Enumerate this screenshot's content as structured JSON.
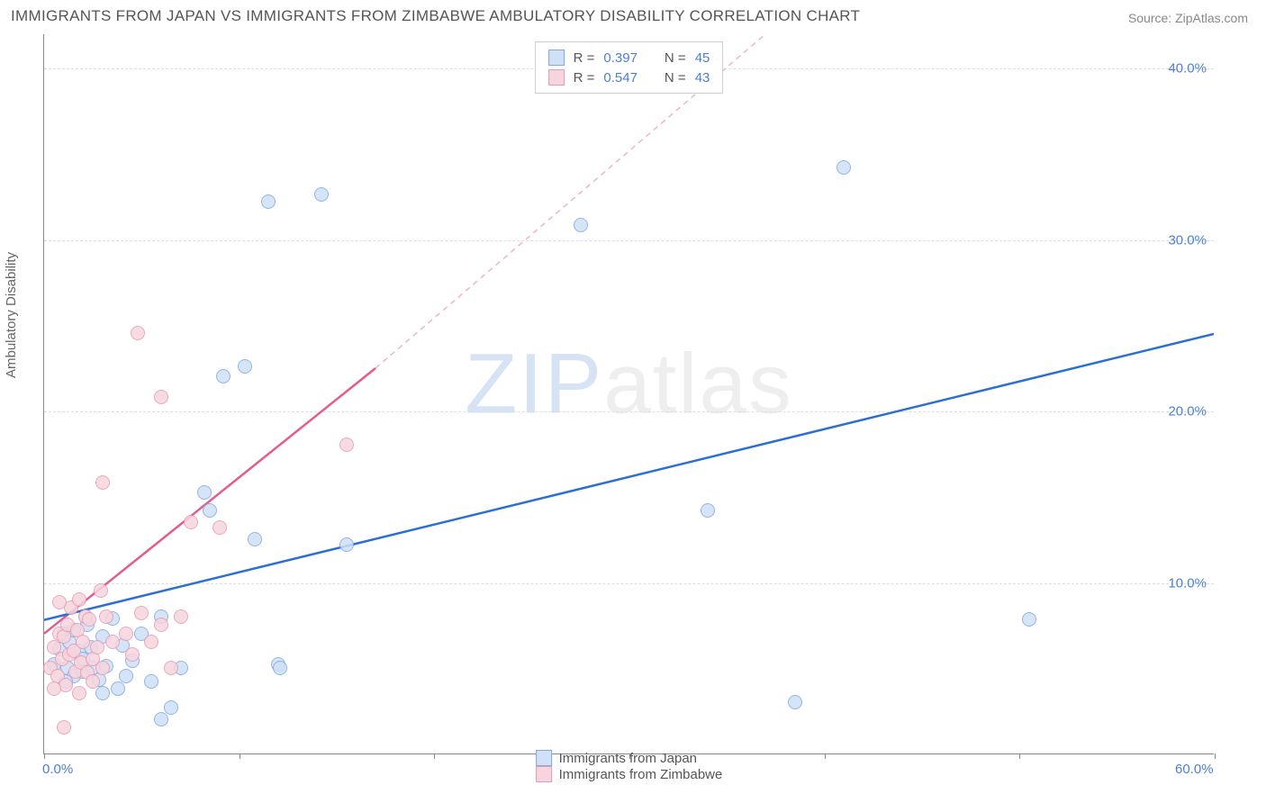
{
  "title": "IMMIGRANTS FROM JAPAN VS IMMIGRANTS FROM ZIMBABWE AMBULATORY DISABILITY CORRELATION CHART",
  "source_prefix": "Source: ",
  "source_name": "ZipAtlas.com",
  "ylabel": "Ambulatory Disability",
  "watermark_bold": "ZIP",
  "watermark_light": "atlas",
  "chart": {
    "type": "scatter",
    "xlim": [
      0,
      60
    ],
    "ylim": [
      0,
      42
    ],
    "xtick_positions": [
      0,
      10,
      20,
      30,
      40,
      50,
      60
    ],
    "xtick_labels": {
      "0": "0.0%",
      "60": "60.0%"
    },
    "ytick_positions": [
      10,
      20,
      30,
      40
    ],
    "ytick_labels": [
      "10.0%",
      "20.0%",
      "30.0%",
      "40.0%"
    ],
    "grid_color": "#dddddd",
    "axis_color": "#888888",
    "background_color": "#ffffff",
    "point_radius": 8,
    "point_stroke_width": 1.2,
    "series": [
      {
        "name": "Immigrants from Japan",
        "fill_color": "#cfe0f7",
        "stroke_color": "#7fa9e0",
        "legend_swatch_fill": "#cfe0f7",
        "legend_swatch_border": "#7fa9e0",
        "R": "0.397",
        "N": "45",
        "trend": {
          "color": "#2b6fd6",
          "width": 2.5,
          "dash": "none",
          "x1": 0,
          "y1": 7.8,
          "x2": 60,
          "y2": 24.5
        },
        "points": [
          [
            0.5,
            5.2
          ],
          [
            0.8,
            6.1
          ],
          [
            1.0,
            7.0
          ],
          [
            1.2,
            5.0
          ],
          [
            1.3,
            6.5
          ],
          [
            1.5,
            4.5
          ],
          [
            1.5,
            7.2
          ],
          [
            1.8,
            6.0
          ],
          [
            2.0,
            5.5
          ],
          [
            2.0,
            4.8
          ],
          [
            2.2,
            7.5
          ],
          [
            2.4,
            6.2
          ],
          [
            2.5,
            5.0
          ],
          [
            2.8,
            4.3
          ],
          [
            3.0,
            6.8
          ],
          [
            3.2,
            5.1
          ],
          [
            3.5,
            7.9
          ],
          [
            3.8,
            3.8
          ],
          [
            4.0,
            6.3
          ],
          [
            4.5,
            5.4
          ],
          [
            5.0,
            7.0
          ],
          [
            5.5,
            4.2
          ],
          [
            6.0,
            8.0
          ],
          [
            6.5,
            2.7
          ],
          [
            7.0,
            5.0
          ],
          [
            8.2,
            15.2
          ],
          [
            8.5,
            14.2
          ],
          [
            9.2,
            22.0
          ],
          [
            10.3,
            22.6
          ],
          [
            10.8,
            12.5
          ],
          [
            12.0,
            5.2
          ],
          [
            12.1,
            5.0
          ],
          [
            11.5,
            32.2
          ],
          [
            14.2,
            32.6
          ],
          [
            15.5,
            12.2
          ],
          [
            27.5,
            30.8
          ],
          [
            34.0,
            14.2
          ],
          [
            38.5,
            3.0
          ],
          [
            41.0,
            34.2
          ],
          [
            50.5,
            7.8
          ],
          [
            4.2,
            4.5
          ],
          [
            3.0,
            3.5
          ],
          [
            2.1,
            8.0
          ],
          [
            1.1,
            4.2
          ],
          [
            6.0,
            2.0
          ]
        ]
      },
      {
        "name": "Immigrants from Zimbabwe",
        "fill_color": "#f6d5de",
        "stroke_color": "#e89ab0",
        "legend_swatch_fill": "#f6d5de",
        "legend_swatch_border": "#e89ab0",
        "R": "0.547",
        "N": "43",
        "trend_solid": {
          "color": "#e85a8a",
          "width": 2.5,
          "x1": 0,
          "y1": 7.0,
          "x2": 17,
          "y2": 22.5
        },
        "trend_dashed": {
          "color": "#f0b3c5",
          "width": 1.5,
          "dash": "6,5",
          "x1": 17,
          "y1": 22.5,
          "x2": 37,
          "y2": 42
        },
        "points": [
          [
            0.3,
            5.0
          ],
          [
            0.5,
            6.2
          ],
          [
            0.7,
            4.5
          ],
          [
            0.8,
            7.0
          ],
          [
            0.9,
            5.5
          ],
          [
            1.0,
            6.8
          ],
          [
            1.1,
            4.0
          ],
          [
            1.2,
            7.5
          ],
          [
            1.3,
            5.8
          ],
          [
            1.4,
            8.5
          ],
          [
            1.5,
            6.0
          ],
          [
            1.6,
            4.8
          ],
          [
            1.7,
            7.2
          ],
          [
            1.8,
            9.0
          ],
          [
            1.9,
            5.3
          ],
          [
            2.0,
            6.5
          ],
          [
            2.1,
            8.0
          ],
          [
            2.2,
            4.7
          ],
          [
            2.3,
            7.8
          ],
          [
            2.5,
            5.5
          ],
          [
            2.7,
            6.2
          ],
          [
            2.9,
            9.5
          ],
          [
            3.0,
            5.0
          ],
          [
            3.2,
            8.0
          ],
          [
            3.5,
            6.5
          ],
          [
            3.0,
            15.8
          ],
          [
            4.2,
            7.0
          ],
          [
            4.5,
            5.8
          ],
          [
            5.0,
            8.2
          ],
          [
            5.5,
            6.5
          ],
          [
            6.0,
            7.5
          ],
          [
            6.5,
            5.0
          ],
          [
            7.0,
            8.0
          ],
          [
            4.8,
            24.5
          ],
          [
            6.0,
            20.8
          ],
          [
            7.5,
            13.5
          ],
          [
            9.0,
            13.2
          ],
          [
            15.5,
            18.0
          ],
          [
            1.0,
            1.5
          ],
          [
            0.5,
            3.8
          ],
          [
            1.8,
            3.5
          ],
          [
            2.5,
            4.2
          ],
          [
            0.8,
            8.8
          ]
        ]
      }
    ]
  },
  "legend_top_template": {
    "r_label": "R =",
    "n_label": "N ="
  }
}
